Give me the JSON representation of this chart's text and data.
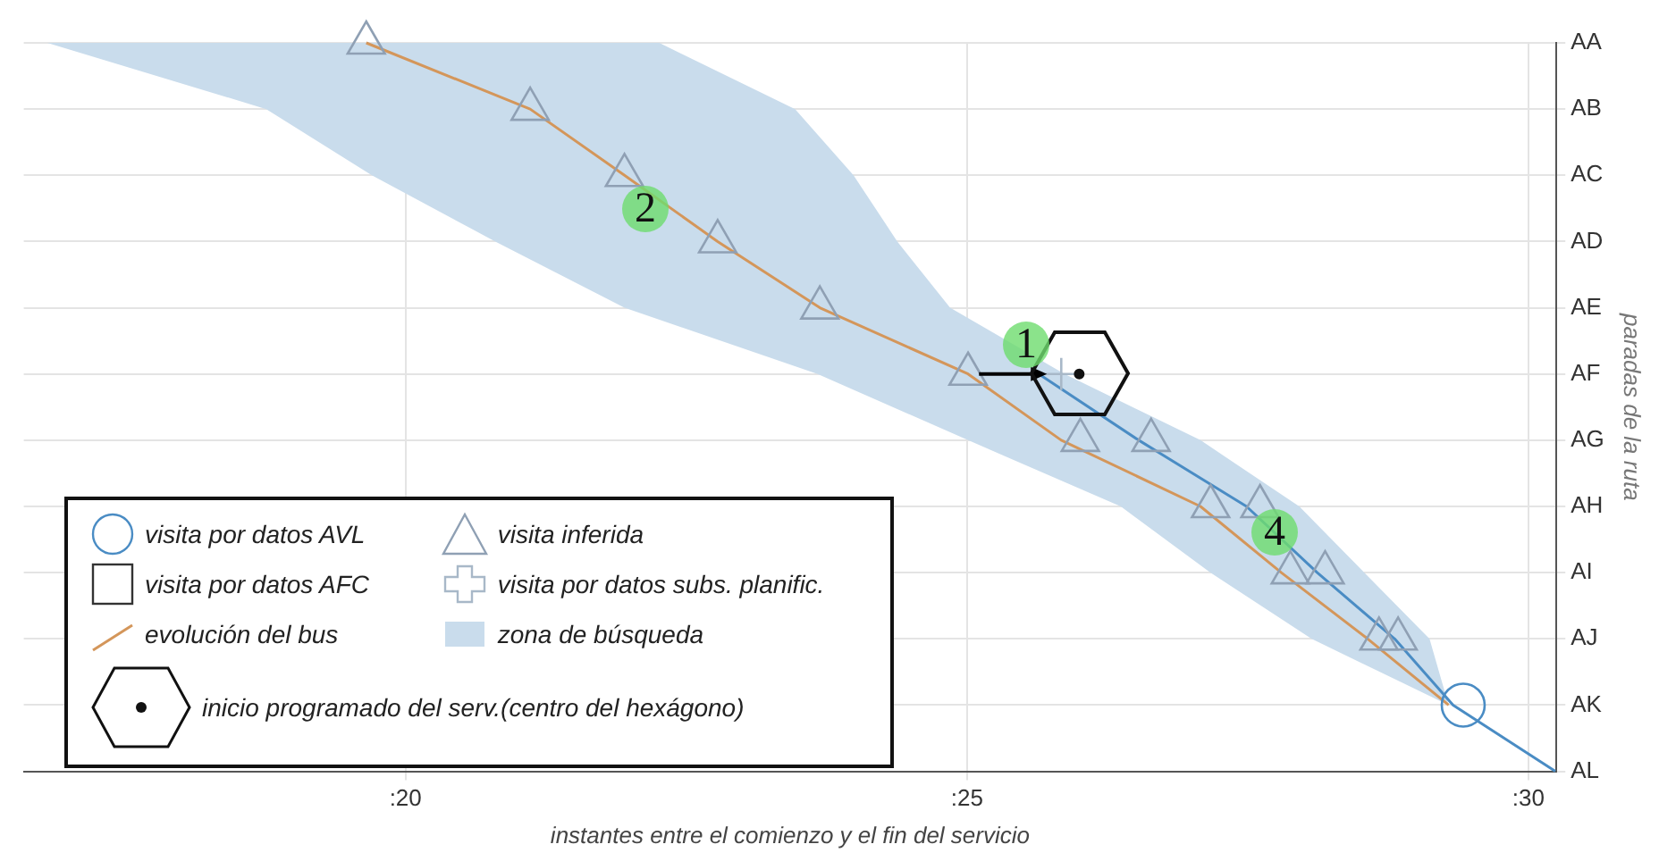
{
  "chart_data": {
    "type": "line",
    "orientation": "horizontal",
    "xlabel": "instantes entre el comienzo y el fin del servicio",
    "ylabel": "paradas de la ruta",
    "categories": [
      "AA",
      "AB",
      "AC",
      "AD",
      "AE",
      "AF",
      "AG",
      "AH",
      "AI",
      "AJ",
      "AK",
      "AL"
    ],
    "xlim": [
      16.6,
      30.25
    ],
    "xticks": [
      {
        "value": 20,
        "label": ":20"
      },
      {
        "value": 25,
        "label": ":25"
      },
      {
        "value": 30,
        "label": ":30"
      }
    ],
    "grid": true,
    "legend": "bottom left",
    "series": [
      {
        "type": "area",
        "name": "zona de búsqueda",
        "color": "#c9dcec",
        "values": [
          null,
          null,
          null,
          null,
          null,
          null,
          null,
          null,
          null,
          null,
          null,
          null
        ],
        "lower": [
          16.81,
          18.76,
          19.7,
          20.8,
          21.95,
          23.67,
          25.01,
          26.37,
          27.17,
          28.07,
          29.29,
          null
        ],
        "upper": [
          22.26,
          23.47,
          23.99,
          24.38,
          24.85,
          25.87,
          27.08,
          27.96,
          28.54,
          29.12,
          29.29,
          null
        ]
      },
      {
        "type": "line",
        "name": "evolución del bus",
        "color": "#d4965a",
        "marker": "none",
        "values": [
          19.65,
          21.11,
          21.95,
          22.78,
          23.69,
          25.01,
          25.84,
          27.08,
          27.8,
          28.57,
          29.29,
          null
        ]
      },
      {
        "type": "line",
        "color": "#4a8cc4",
        "marker": "none",
        "values": [
          null,
          null,
          null,
          null,
          null,
          25.64,
          26.53,
          27.49,
          28.12,
          28.81,
          29.33,
          30.24
        ]
      },
      {
        "type": "scatter",
        "name": "visita inferida",
        "color": "#8fa0b4",
        "marker": "triangle",
        "values": [
          19.65,
          21.11,
          21.95,
          22.78,
          23.69,
          25.01,
          26.01,
          27.17,
          27.88,
          28.67,
          null,
          null
        ]
      },
      {
        "type": "scatter",
        "color": "#8fa0b4",
        "marker": "triangle",
        "values": [
          null,
          null,
          null,
          null,
          null,
          null,
          26.64,
          27.61,
          28.19,
          28.84,
          null,
          null
        ]
      },
      {
        "type": "scatter",
        "name": "visita por datos subs. planific.",
        "color": "#a8b8c8",
        "marker": "cross",
        "values": [
          null,
          null,
          null,
          null,
          null,
          25.84,
          null,
          null,
          null,
          null,
          null,
          null
        ]
      },
      {
        "type": "scatter",
        "name": "visita por datos AVL",
        "color": "#4a8cc4",
        "marker": "circle",
        "values": [
          null,
          null,
          null,
          null,
          null,
          null,
          null,
          null,
          null,
          null,
          29.42,
          null
        ]
      },
      {
        "type": "scatter",
        "name": "visita por datos AFC",
        "color": "#333333",
        "marker": "square",
        "values": [
          null,
          null,
          null,
          null,
          null,
          null,
          null,
          null,
          null,
          null,
          null,
          null
        ]
      },
      {
        "type": "scatter",
        "name": "inicio programado del serv.(centro del hexágono)",
        "color": "#111111",
        "values": [
          null,
          null,
          null,
          null,
          null,
          26.0,
          null,
          null,
          null,
          null,
          null,
          null
        ]
      }
    ],
    "annotations": [
      "1",
      "2",
      "4"
    ]
  }
}
